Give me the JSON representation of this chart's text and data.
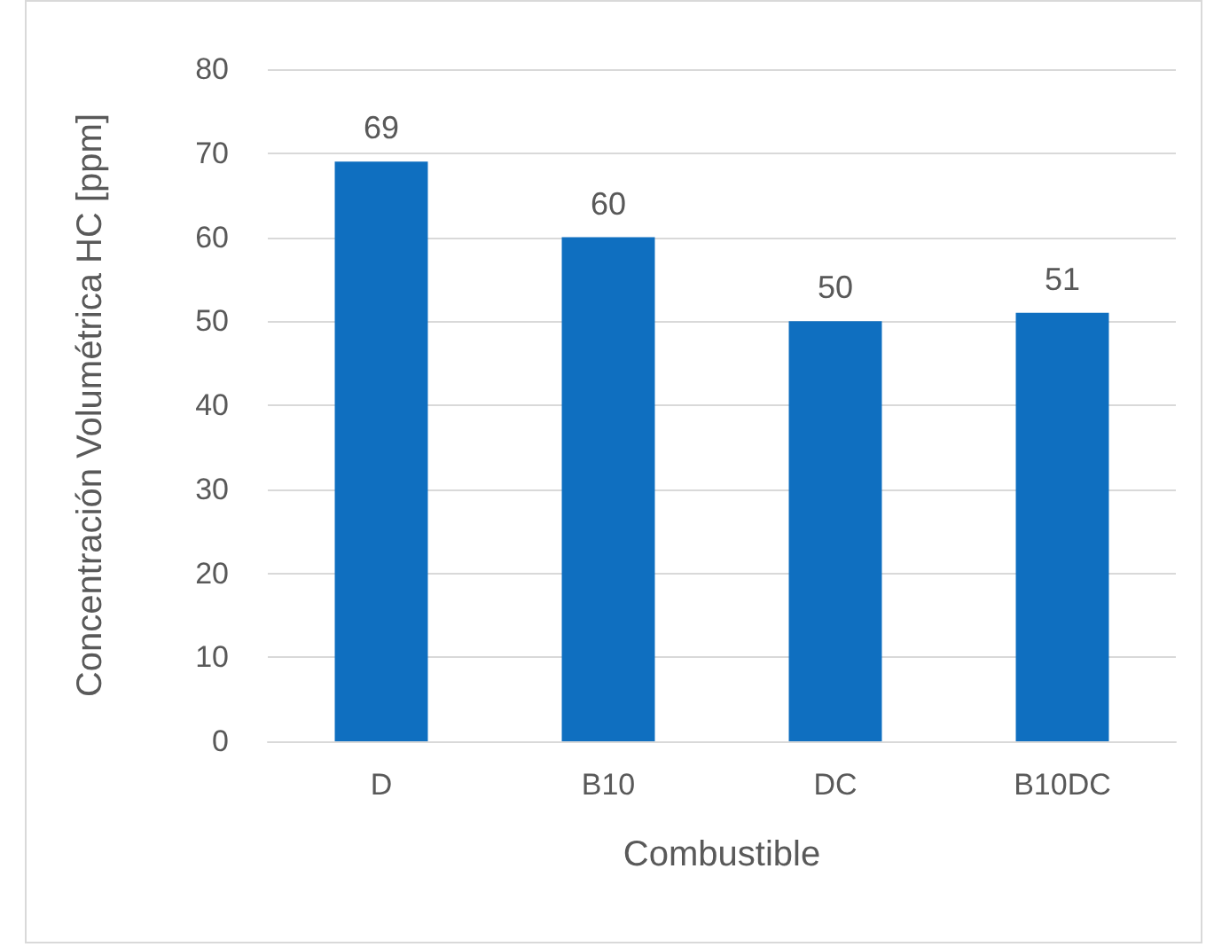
{
  "chart_data": {
    "type": "bar",
    "xlabel": "Combustible",
    "ylabel": "Concentración Volumétrica HC [ppm]",
    "categories": [
      "D",
      "B10",
      "DC",
      "B10DC"
    ],
    "values": [
      69,
      60,
      50,
      51
    ],
    "color": "#0f6fc0",
    "ylim": [
      0,
      80
    ],
    "yticks": [
      0,
      10,
      20,
      30,
      40,
      50,
      60,
      70,
      80
    ],
    "grid": "y",
    "data_labels": true
  }
}
